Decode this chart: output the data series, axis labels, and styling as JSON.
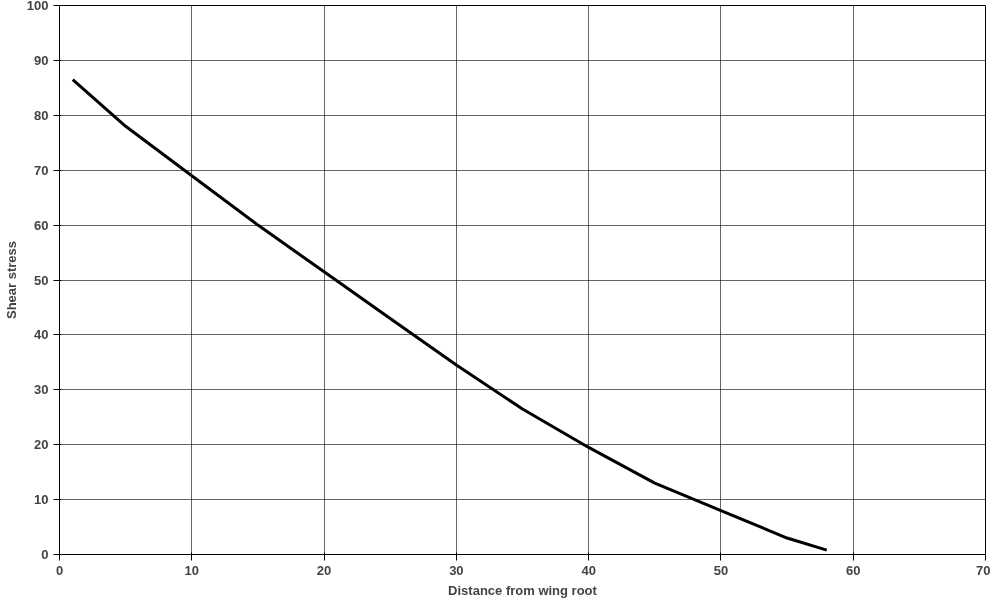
{
  "chart_data": {
    "type": "line",
    "xlabel": "Distance from wing root",
    "ylabel": "Shear stress",
    "x": [
      1,
      5,
      10,
      15,
      20,
      25,
      30,
      35,
      40,
      45,
      50,
      55,
      58
    ],
    "series": [
      {
        "color": "#000000",
        "values": [
          86.5,
          78,
          69,
          60,
          51.5,
          43,
          34.5,
          26.5,
          19.5,
          13,
          8,
          3,
          0.8
        ]
      }
    ],
    "xlim": [
      0,
      70
    ],
    "xticks": [
      0,
      10,
      20,
      30,
      40,
      50,
      60,
      70
    ],
    "ylim": [
      0,
      100
    ],
    "yticks": [
      0,
      10,
      20,
      30,
      40,
      50,
      60,
      70,
      80,
      90,
      100
    ],
    "grid": true,
    "marker": "none",
    "line_style": "solid"
  }
}
